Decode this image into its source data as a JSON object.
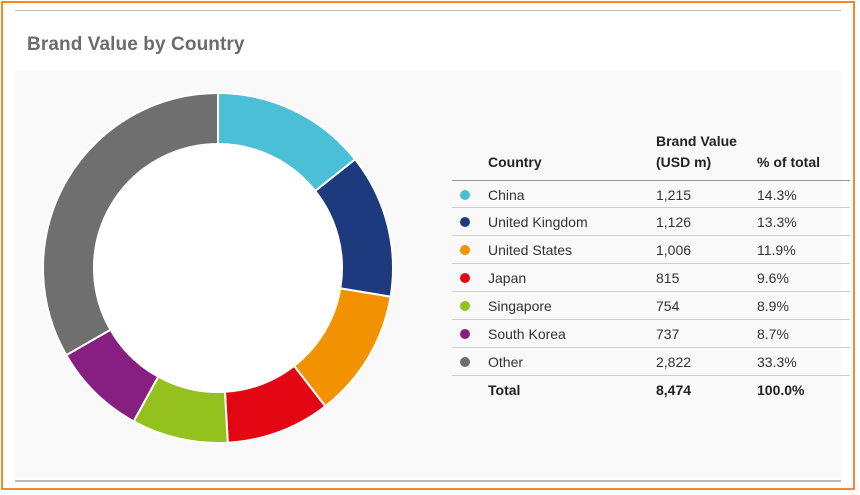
{
  "title": "Brand Value by Country",
  "table": {
    "headers": {
      "country": "Country",
      "value_line1": "Brand Value",
      "value_line2": "(USD m)",
      "percent": "% of total"
    },
    "rows": [
      {
        "country": "China",
        "value": "1,215",
        "percent": "14.3%",
        "color": "#4bbfd6"
      },
      {
        "country": "United Kingdom",
        "value": "1,126",
        "percent": "13.3%",
        "color": "#1e3a7e"
      },
      {
        "country": "United States",
        "value": "1,006",
        "percent": "11.9%",
        "color": "#f39200"
      },
      {
        "country": "Japan",
        "value": "815",
        "percent": "9.6%",
        "color": "#e30613"
      },
      {
        "country": "Singapore",
        "value": "754",
        "percent": "8.9%",
        "color": "#95c11f"
      },
      {
        "country": "South Korea",
        "value": "737",
        "percent": "8.7%",
        "color": "#861f80"
      },
      {
        "country": "Other",
        "value": "2,822",
        "percent": "33.3%",
        "color": "#6f6f6f"
      }
    ],
    "total": {
      "label": "Total",
      "value": "8,474",
      "percent": "100.0%"
    }
  },
  "chart_data": {
    "type": "pie",
    "variant": "donut",
    "title": "Brand Value by Country",
    "categories": [
      "China",
      "United Kingdom",
      "United States",
      "Japan",
      "Singapore",
      "South Korea",
      "Other"
    ],
    "values": [
      1215,
      1126,
      1006,
      815,
      754,
      737,
      2822
    ],
    "percent": [
      14.3,
      13.3,
      11.9,
      9.6,
      8.9,
      8.7,
      33.3
    ],
    "colors": [
      "#4bbfd6",
      "#1e3a7e",
      "#f39200",
      "#e30613",
      "#95c11f",
      "#861f80",
      "#6f6f6f"
    ],
    "total": 8474,
    "unit": "USD m",
    "start": "12 o'clock",
    "direction": "clockwise",
    "legend": "right, as table"
  }
}
